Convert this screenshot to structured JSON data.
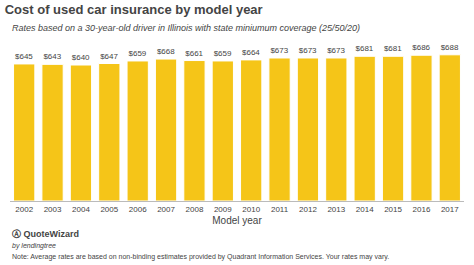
{
  "chart_data": {
    "type": "bar",
    "title": "Cost of used car insurance by model year",
    "subtitle": "Rates based on a 30-year-old driver in Illinois with state miniumum coverage (25/50/20)",
    "xlabel": "Model year",
    "categories": [
      "2002",
      "2003",
      "2004",
      "2005",
      "2006",
      "2007",
      "2008",
      "2009",
      "2010",
      "2011",
      "2012",
      "2013",
      "2014",
      "2015",
      "2016",
      "2017"
    ],
    "values": [
      645,
      643,
      640,
      647,
      659,
      668,
      661,
      659,
      664,
      673,
      673,
      673,
      681,
      681,
      686,
      688
    ],
    "value_labels": [
      "$645",
      "$643",
      "$640",
      "$647",
      "$659",
      "$668",
      "$661",
      "$659",
      "$664",
      "$673",
      "$673",
      "$673",
      "$681",
      "$681",
      "$686",
      "$688"
    ],
    "data_labels": true,
    "color": "#F5C518",
    "ylim": [
      0,
      720
    ],
    "tick_labels": "x",
    "grid": false,
    "annotations": [
      "Note: Average rates are based on non-binding estimates provided by Quadrant Information Services. Your rates may vary.",
      "Ⓐ QuoteWizard",
      "by lendingtree"
    ]
  }
}
